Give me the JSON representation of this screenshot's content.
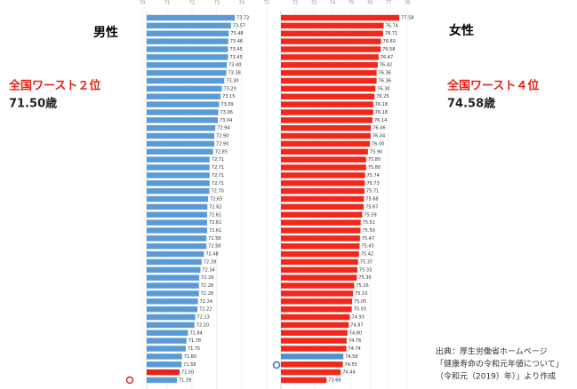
{
  "chart_data": [
    {
      "type": "bar",
      "orientation": "horizontal",
      "title": "男性",
      "color": "#5b9bd5",
      "highlight": {
        "index": 45,
        "color": "#e8231a"
      },
      "xlim": [
        70,
        75.4
      ],
      "xticks": [
        70,
        71,
        72,
        73,
        74,
        75
      ],
      "values": [
        73.72,
        73.57,
        73.48,
        73.46,
        73.45,
        73.45,
        73.4,
        73.38,
        73.3,
        73.2,
        73.15,
        73.09,
        73.06,
        73.04,
        72.94,
        72.9,
        72.9,
        72.85,
        72.71,
        72.71,
        72.71,
        72.71,
        72.7,
        72.65,
        72.62,
        72.61,
        72.61,
        72.61,
        72.58,
        72.58,
        72.48,
        72.39,
        72.34,
        72.29,
        72.28,
        72.28,
        72.24,
        72.22,
        72.13,
        72.1,
        71.84,
        71.78,
        71.75,
        71.6,
        71.58,
        71.5,
        71.39
      ],
      "value_labels": [
        "73.72",
        "73.57",
        "73.48",
        "73.46",
        "73.45",
        "73.45",
        "73.40",
        "73.38",
        "73.30",
        "73.20",
        "73.15",
        "73.09",
        "73.06",
        "73.04",
        "72.94",
        "72.90",
        "72.90",
        "72.85",
        "72.71",
        "72.71",
        "72.71",
        "72.71",
        "72.70",
        "72.65",
        "72.62",
        "72.61",
        "72.61",
        "72.61",
        "72.58",
        "72.58",
        "72.48",
        "72.39",
        "72.34",
        "72.29",
        "72.28",
        "72.28",
        "72.24",
        "72.22",
        "72.13",
        "72.10",
        "71.84",
        "71.78",
        "71.75",
        "71.60",
        "71.58",
        "71.50",
        "71.39"
      ],
      "annotation": "全国ワースト２位",
      "annotation_value": "71.50歳"
    },
    {
      "type": "bar",
      "orientation": "horizontal",
      "title": "女性",
      "color": "#f0271a",
      "highlight": {
        "index": 43,
        "color": "#4f8fd0"
      },
      "xlim": [
        71,
        78.5
      ],
      "xticks": [
        72,
        73,
        74,
        75,
        76,
        77,
        78
      ],
      "values": [
        77.58,
        76.74,
        76.71,
        76.6,
        76.58,
        76.47,
        76.42,
        76.36,
        76.36,
        76.3,
        76.25,
        76.18,
        76.18,
        76.14,
        76.06,
        76.04,
        76.0,
        75.9,
        75.8,
        75.8,
        75.74,
        75.73,
        75.71,
        75.68,
        75.67,
        75.59,
        75.51,
        75.5,
        75.47,
        75.45,
        75.42,
        75.37,
        75.33,
        75.3,
        75.16,
        75.1,
        75.05,
        75.03,
        74.93,
        74.87,
        74.8,
        74.76,
        74.74,
        74.58,
        74.55,
        74.44,
        73.68
      ],
      "value_labels": [
        "77.58",
        "76.74",
        "76.71",
        "76.60",
        "76.58",
        "76.47",
        "76.42",
        "76.36",
        "76.36",
        "76.30",
        "76.25",
        "76.18",
        "76.18",
        "76.14",
        "76.06",
        "76.04",
        "76.00",
        "75.90",
        "75.80",
        "75.80",
        "75.74",
        "75.73",
        "75.71",
        "75.68",
        "75.67",
        "75.59",
        "75.51",
        "75.50",
        "75.47",
        "75.45",
        "75.42",
        "75.37",
        "75.33",
        "75.30",
        "75.16",
        "75.10",
        "75.05",
        "75.03",
        "74.93",
        "74.87",
        "74.80",
        "74.76",
        "74.74",
        "74.58",
        "74.55",
        "74.44",
        "73.68"
      ],
      "annotation": "全国ワースト４位",
      "annotation_value": "74.58歳"
    }
  ],
  "source": [
    "出典：厚生労働省ホームページ",
    "「健康寿命の令和元年値について」",
    "（令和元（2019）年）」より作成"
  ]
}
